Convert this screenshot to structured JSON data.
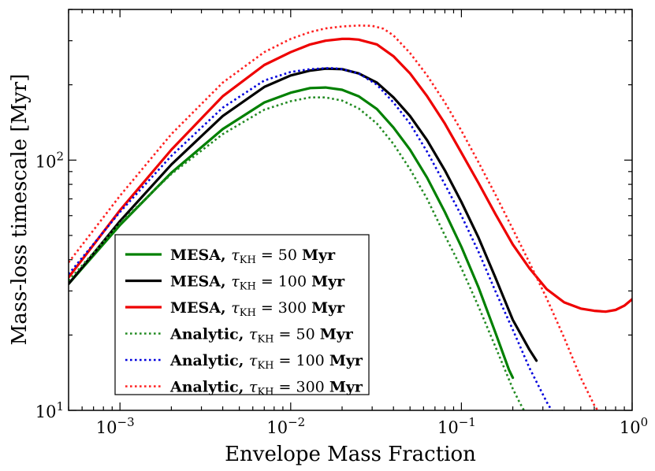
{
  "chart_data": {
    "type": "line",
    "title": "",
    "xlabel": "Envelope Mass Fraction",
    "ylabel": "Mass-loss timescale [Myr]",
    "xscale": "log",
    "yscale": "log",
    "xlim": [
      0.0005,
      1.0
    ],
    "ylim": [
      10,
      400
    ],
    "grid": false,
    "legend_position": "lower-left",
    "x_ticks": [
      {
        "value": 0.001,
        "base": "10",
        "exp": "−3"
      },
      {
        "value": 0.01,
        "base": "10",
        "exp": "−2"
      },
      {
        "value": 0.1,
        "base": "10",
        "exp": "−1"
      },
      {
        "value": 1.0,
        "base": "10",
        "exp": "0"
      }
    ],
    "y_ticks": [
      {
        "value": 10,
        "base": "10",
        "exp": "1"
      },
      {
        "value": 100,
        "base": "10",
        "exp": "2"
      }
    ],
    "series": [
      {
        "name": "MESA, τKH = 50 Myr",
        "label_prefix": "MESA, ",
        "tau_value": "50",
        "color": "#008000",
        "style": "solid",
        "x": [
          0.0005,
          0.001,
          0.002,
          0.004,
          0.007,
          0.01,
          0.013,
          0.016,
          0.02,
          0.025,
          0.032,
          0.04,
          0.05,
          0.063,
          0.08,
          0.1,
          0.126,
          0.158,
          0.19,
          0.2
        ],
        "y": [
          32,
          55,
          89,
          133,
          170,
          186,
          194,
          195,
          191,
          180,
          160,
          135,
          110,
          85,
          62,
          45,
          31,
          20.5,
          14.5,
          13.5
        ]
      },
      {
        "name": "MESA, τKH = 100 Myr",
        "label_prefix": "MESA, ",
        "tau_value": "100",
        "color": "#000000",
        "style": "solid",
        "x": [
          0.0005,
          0.001,
          0.002,
          0.004,
          0.007,
          0.01,
          0.013,
          0.016,
          0.02,
          0.025,
          0.032,
          0.04,
          0.05,
          0.063,
          0.08,
          0.1,
          0.126,
          0.158,
          0.2,
          0.25,
          0.275
        ],
        "y": [
          32,
          57,
          96,
          150,
          196,
          218,
          228,
          232,
          231,
          222,
          204,
          178,
          150,
          120,
          91,
          68,
          49,
          34,
          23,
          17.5,
          15.8
        ]
      },
      {
        "name": "MESA, τKH = 300 Myr",
        "label_prefix": "MESA, ",
        "tau_value": "300",
        "color": "#ee0000",
        "style": "solid",
        "x": [
          0.0005,
          0.001,
          0.002,
          0.004,
          0.007,
          0.01,
          0.013,
          0.016,
          0.02,
          0.022,
          0.025,
          0.032,
          0.04,
          0.05,
          0.063,
          0.08,
          0.1,
          0.126,
          0.158,
          0.2,
          0.25,
          0.316,
          0.4,
          0.5,
          0.6,
          0.7,
          0.8,
          0.9,
          1.0
        ],
        "y": [
          34,
          63,
          110,
          180,
          240,
          270,
          290,
          300,
          305,
          305,
          303,
          290,
          260,
          222,
          180,
          140,
          107,
          81,
          61,
          46,
          37,
          30.5,
          27,
          25.5,
          25,
          24.8,
          25.2,
          26.2,
          27.8
        ]
      },
      {
        "name": "Analytic, τKH = 50 Myr",
        "label_prefix": "Analytic, ",
        "tau_value": "50",
        "color": "#228B22",
        "style": "dotted",
        "x": [
          0.0005,
          0.001,
          0.002,
          0.004,
          0.007,
          0.01,
          0.013,
          0.016,
          0.02,
          0.025,
          0.032,
          0.04,
          0.05,
          0.063,
          0.08,
          0.1,
          0.126,
          0.158,
          0.2,
          0.22,
          0.24
        ],
        "y": [
          33,
          56,
          88,
          127,
          159,
          172,
          178,
          178,
          173,
          161,
          140,
          116,
          92,
          70,
          50,
          37,
          26,
          18,
          12.2,
          10.7,
          9.6
        ]
      },
      {
        "name": "Analytic, τKH = 100 Myr",
        "label_prefix": "Analytic, ",
        "tau_value": "100",
        "color": "#0000dd",
        "style": "dotted",
        "x": [
          0.0005,
          0.001,
          0.002,
          0.004,
          0.007,
          0.01,
          0.013,
          0.016,
          0.018,
          0.02,
          0.025,
          0.032,
          0.04,
          0.05,
          0.063,
          0.08,
          0.1,
          0.126,
          0.158,
          0.2,
          0.25,
          0.316,
          0.35
        ],
        "y": [
          35,
          62,
          104,
          162,
          208,
          225,
          231,
          233,
          233,
          231,
          222,
          200,
          170,
          140,
          108,
          80,
          60,
          43,
          30,
          21,
          14.8,
          10.8,
          9.6
        ]
      },
      {
        "name": "Analytic, τKH = 300 Myr",
        "label_prefix": "Analytic, ",
        "tau_value": "300",
        "color": "#ff2020",
        "style": "dotted",
        "x": [
          0.0005,
          0.001,
          0.002,
          0.004,
          0.007,
          0.01,
          0.013,
          0.016,
          0.02,
          0.025,
          0.03,
          0.035,
          0.04,
          0.05,
          0.063,
          0.08,
          0.1,
          0.126,
          0.158,
          0.2,
          0.25,
          0.316,
          0.4,
          0.5,
          0.6,
          0.66
        ],
        "y": [
          39,
          72,
          127,
          204,
          270,
          305,
          325,
          336,
          342,
          345,
          344,
          335,
          315,
          268,
          218,
          170,
          131,
          98,
          73,
          53,
          39,
          28,
          19.5,
          13.5,
          10.5,
          9.5
        ]
      }
    ]
  },
  "legend": {
    "tau_symbol": "τ",
    "tau_subscript": "KH",
    "equals": "=",
    "unit": "Myr"
  }
}
